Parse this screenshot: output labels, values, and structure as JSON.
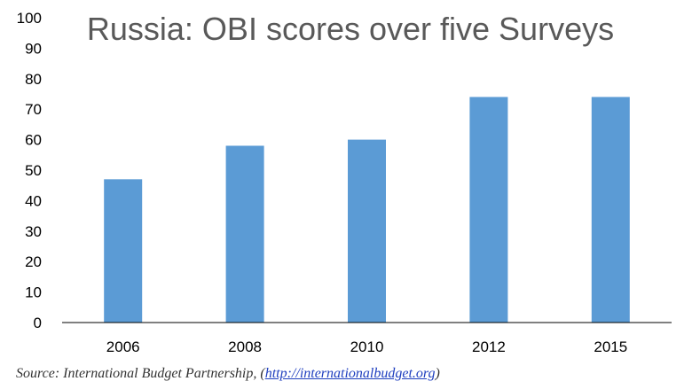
{
  "chart_data": {
    "type": "bar",
    "title": "Russia: OBI scores over five Surveys",
    "xlabel": "",
    "ylabel": "",
    "categories": [
      "2006",
      "2008",
      "2010",
      "2012",
      "2015"
    ],
    "values": [
      47,
      58,
      60,
      74,
      74
    ],
    "ylim": [
      0,
      100
    ],
    "yticks": [
      "0",
      "10",
      "20",
      "30",
      "40",
      "50",
      "60",
      "70",
      "80",
      "90",
      "100"
    ],
    "grid": false,
    "legend": "none",
    "bar_color": "#5b9bd5",
    "axis_color": "#000000",
    "title_color": "#595959"
  },
  "source": {
    "prefix": "Source: International Budget Partnership, (",
    "link": "http://internationalbudget.org",
    "suffix": ")"
  }
}
